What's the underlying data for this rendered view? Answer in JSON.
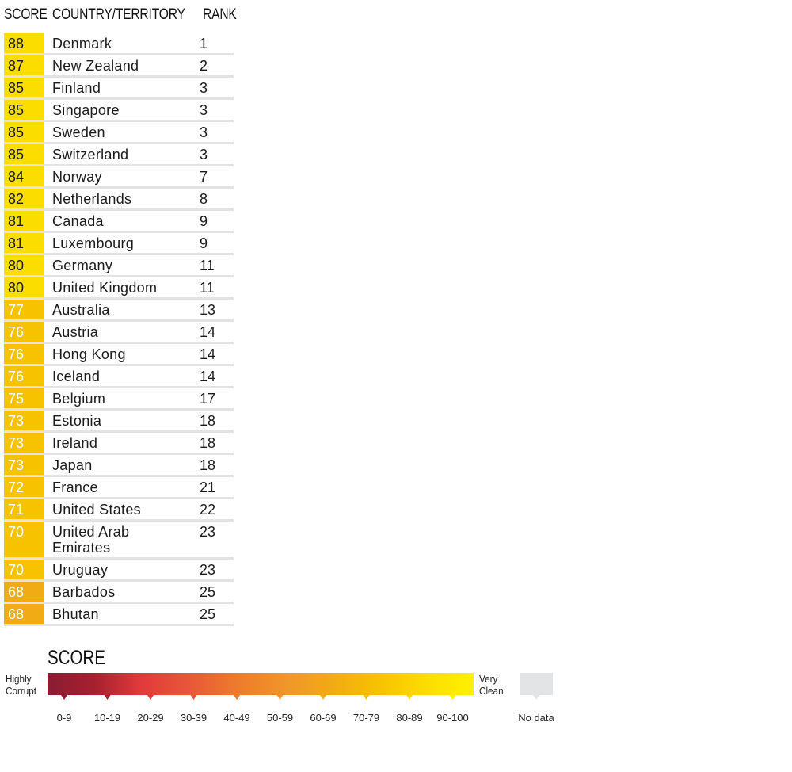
{
  "headers": {
    "score": "SCORE",
    "country": "COUNTRY/TERRITORY",
    "rank": "RANK"
  },
  "rows": [
    {
      "score": "88",
      "country": "Denmark",
      "rank": "1"
    },
    {
      "score": "87",
      "country": "New Zealand",
      "rank": "2"
    },
    {
      "score": "85",
      "country": "Finland",
      "rank": "3"
    },
    {
      "score": "85",
      "country": "Singapore",
      "rank": "3"
    },
    {
      "score": "85",
      "country": "Sweden",
      "rank": "3"
    },
    {
      "score": "85",
      "country": "Switzerland",
      "rank": "3"
    },
    {
      "score": "84",
      "country": "Norway",
      "rank": "7"
    },
    {
      "score": "82",
      "country": "Netherlands",
      "rank": "8"
    },
    {
      "score": "81",
      "country": "Canada",
      "rank": "9"
    },
    {
      "score": "81",
      "country": "Luxembourg",
      "rank": "9"
    },
    {
      "score": "80",
      "country": "Germany",
      "rank": "11"
    },
    {
      "score": "80",
      "country": "United Kingdom",
      "rank": "11"
    },
    {
      "score": "77",
      "country": "Australia",
      "rank": "13"
    },
    {
      "score": "76",
      "country": "Austria",
      "rank": "14"
    },
    {
      "score": "76",
      "country": "Hong Kong",
      "rank": "14"
    },
    {
      "score": "76",
      "country": "Iceland",
      "rank": "14"
    },
    {
      "score": "75",
      "country": "Belgium",
      "rank": "17"
    },
    {
      "score": "73",
      "country": "Estonia",
      "rank": "18"
    },
    {
      "score": "73",
      "country": "Ireland",
      "rank": "18"
    },
    {
      "score": "73",
      "country": "Japan",
      "rank": "18"
    },
    {
      "score": "72",
      "country": "France",
      "rank": "21"
    },
    {
      "score": "71",
      "country": "United States",
      "rank": "22"
    },
    {
      "score": "70",
      "country": "United Arab Emirates",
      "rank": "23"
    },
    {
      "score": "70",
      "country": "Uruguay",
      "rank": "23"
    },
    {
      "score": "68",
      "country": "Barbados",
      "rank": "25"
    },
    {
      "score": "68",
      "country": "Bhutan",
      "rank": "25"
    }
  ],
  "legend": {
    "title": "SCORE",
    "left_label": [
      "Highly",
      "Corrupt"
    ],
    "right_label": [
      "Very",
      "Clean"
    ],
    "bins": [
      {
        "label": "0-9",
        "color": "#8a1c33"
      },
      {
        "label": "10-19",
        "color": "#a5202f"
      },
      {
        "label": "20-29",
        "color": "#e23a3a"
      },
      {
        "label": "30-39",
        "color": "#e8563a"
      },
      {
        "label": "40-49",
        "color": "#ec7a2c"
      },
      {
        "label": "50-59",
        "color": "#f0962a"
      },
      {
        "label": "60-69",
        "color": "#f1ab14"
      },
      {
        "label": "70-79",
        "color": "#f7c300"
      },
      {
        "label": "80-89",
        "color": "#fbdd00"
      },
      {
        "label": "90-100",
        "color": "#fff200"
      }
    ],
    "no_data": {
      "label": "No data",
      "color": "#e3e4e6"
    }
  },
  "chart_data": {
    "type": "table",
    "columns": [
      "SCORE",
      "COUNTRY/TERRITORY",
      "RANK"
    ],
    "rows": [
      [
        88,
        "Denmark",
        1
      ],
      [
        87,
        "New Zealand",
        2
      ],
      [
        85,
        "Finland",
        3
      ],
      [
        85,
        "Singapore",
        3
      ],
      [
        85,
        "Sweden",
        3
      ],
      [
        85,
        "Switzerland",
        3
      ],
      [
        84,
        "Norway",
        7
      ],
      [
        82,
        "Netherlands",
        8
      ],
      [
        81,
        "Canada",
        9
      ],
      [
        81,
        "Luxembourg",
        9
      ],
      [
        80,
        "Germany",
        11
      ],
      [
        80,
        "United Kingdom",
        11
      ],
      [
        77,
        "Australia",
        13
      ],
      [
        76,
        "Austria",
        14
      ],
      [
        76,
        "Hong Kong",
        14
      ],
      [
        76,
        "Iceland",
        14
      ],
      [
        75,
        "Belgium",
        17
      ],
      [
        73,
        "Estonia",
        18
      ],
      [
        73,
        "Ireland",
        18
      ],
      [
        73,
        "Japan",
        18
      ],
      [
        72,
        "France",
        21
      ],
      [
        71,
        "United States",
        22
      ],
      [
        70,
        "United Arab Emirates",
        23
      ],
      [
        70,
        "Uruguay",
        23
      ],
      [
        68,
        "Barbados",
        25
      ],
      [
        68,
        "Bhutan",
        25
      ]
    ],
    "score_colors": {
      "80-89": "#fbdd00",
      "70-79": "#f7c300",
      "60-69": "#f1ab14"
    }
  }
}
